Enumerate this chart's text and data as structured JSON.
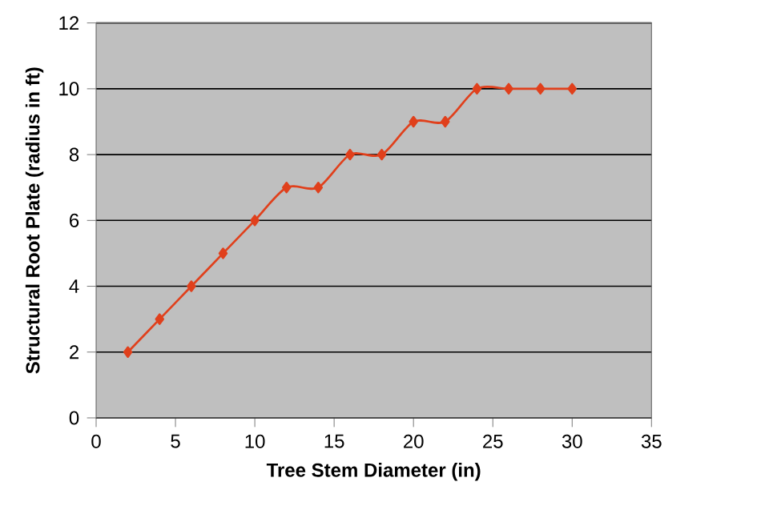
{
  "chart_data": {
    "type": "line",
    "xlabel": "Tree Stem Diameter (in)",
    "ylabel": "Structural Root Plate (radius in ft)",
    "x": [
      2,
      4,
      6,
      8,
      10,
      12,
      14,
      16,
      18,
      20,
      22,
      24,
      26,
      28,
      30
    ],
    "series": [
      {
        "color": "#e0401c",
        "values": [
          2,
          3,
          4,
          5,
          6,
          7,
          7,
          8,
          8,
          9,
          9,
          10,
          10,
          10,
          10
        ]
      }
    ],
    "xlim": [
      0,
      35
    ],
    "ylim": [
      0,
      12
    ],
    "xticks": [
      0,
      5,
      10,
      15,
      20,
      25,
      30,
      35
    ],
    "yticks": [
      0,
      2,
      4,
      6,
      8,
      10,
      12
    ],
    "grid": "y",
    "marker": "diamond",
    "line_style": "solid"
  }
}
